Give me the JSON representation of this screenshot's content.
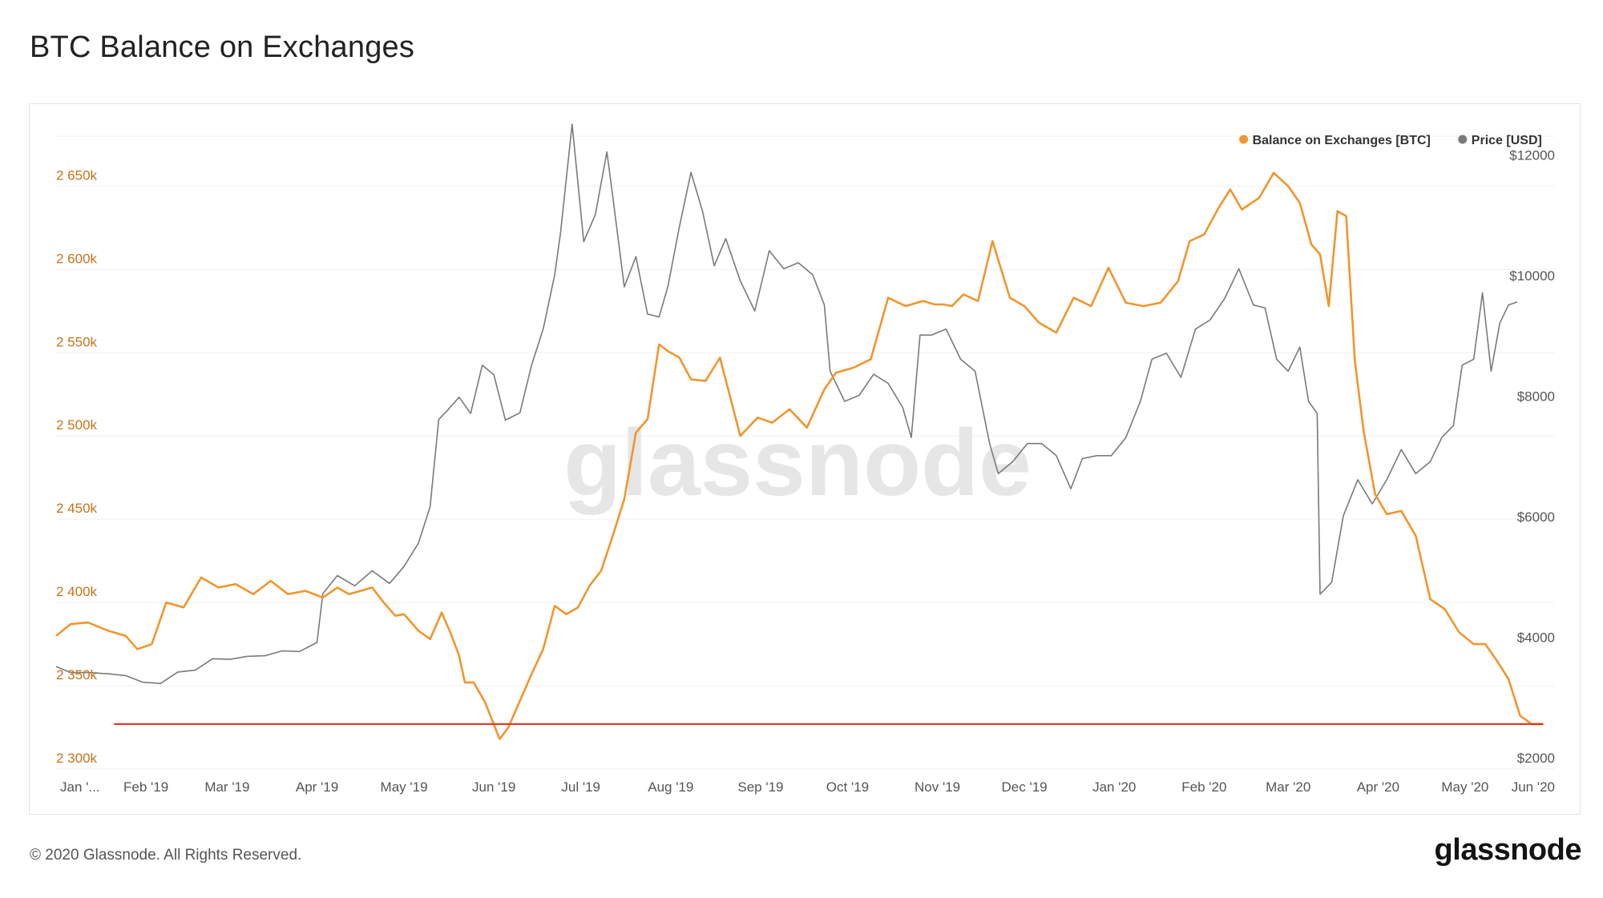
{
  "page": {
    "title": "BTC Balance on Exchanges",
    "copyright": "© 2020 Glassnode. All Rights Reserved.",
    "logo": "glassnode",
    "watermark": "glassnode"
  },
  "colors": {
    "balance": "#f0962e",
    "price": "#7a7a7a",
    "reference_line": "#e8241c",
    "left_axis_text": "#c77418",
    "grid": "#f0f0f0"
  },
  "chart_data": {
    "type": "line",
    "title": "BTC Balance on Exchanges",
    "x_range": [
      "2019-01-01",
      "2020-06-01"
    ],
    "x_ticks": [
      "Jan '...",
      "Feb '19",
      "Mar '19",
      "Apr '19",
      "May '19",
      "Jun '19",
      "Jul '19",
      "Aug '19",
      "Sep '19",
      "Oct '19",
      "Nov '19",
      "Dec '19",
      "Jan '20",
      "Feb '20",
      "Mar '20",
      "Apr '20",
      "May '20",
      "Jun '20"
    ],
    "y_left": {
      "ticks": [
        "2 300k",
        "2 350k",
        "2 400k",
        "2 450k",
        "2 500k",
        "2 550k",
        "2 600k",
        "2 650k"
      ],
      "range": [
        2300000,
        2680000
      ]
    },
    "y_right": {
      "ticks": [
        "$2000",
        "$4000",
        "$6000",
        "$8000",
        "$10000",
        "$12000"
      ],
      "range": [
        2000,
        12500
      ]
    },
    "legend_position": "top-right",
    "grid": true,
    "reference_line": {
      "y": 2327000,
      "axis": "left",
      "from": "2019-01-21",
      "to": "2020-05-28"
    },
    "series": [
      {
        "name": "Balance on Exchanges [BTC]",
        "axis": "left",
        "x": [
          "2019-01-01",
          "2019-01-06",
          "2019-01-12",
          "2019-01-19",
          "2019-01-25",
          "2019-01-29",
          "2019-02-03",
          "2019-02-08",
          "2019-02-14",
          "2019-02-20",
          "2019-02-26",
          "2019-03-04",
          "2019-03-10",
          "2019-03-16",
          "2019-03-22",
          "2019-03-28",
          "2019-04-03",
          "2019-04-08",
          "2019-04-12",
          "2019-04-16",
          "2019-04-20",
          "2019-04-24",
          "2019-04-28",
          "2019-05-01",
          "2019-05-06",
          "2019-05-10",
          "2019-05-14",
          "2019-05-17",
          "2019-05-20",
          "2019-05-22",
          "2019-05-25",
          "2019-05-29",
          "2019-06-03",
          "2019-06-06",
          "2019-06-10",
          "2019-06-14",
          "2019-06-18",
          "2019-06-22",
          "2019-06-26",
          "2019-06-30",
          "2019-07-04",
          "2019-07-08",
          "2019-07-12",
          "2019-07-16",
          "2019-07-20",
          "2019-07-24",
          "2019-07-28",
          "2019-07-31",
          "2019-08-04",
          "2019-08-08",
          "2019-08-13",
          "2019-08-18",
          "2019-08-25",
          "2019-08-31",
          "2019-09-05",
          "2019-09-11",
          "2019-09-17",
          "2019-09-23",
          "2019-09-27",
          "2019-10-03",
          "2019-10-09",
          "2019-10-15",
          "2019-10-21",
          "2019-10-27",
          "2019-10-31",
          "2019-11-03",
          "2019-11-06",
          "2019-11-10",
          "2019-11-15",
          "2019-11-20",
          "2019-11-26",
          "2019-12-01",
          "2019-12-06",
          "2019-12-12",
          "2019-12-18",
          "2019-12-24",
          "2019-12-30",
          "2020-01-05",
          "2020-01-11",
          "2020-01-17",
          "2020-01-23",
          "2020-01-27",
          "2020-02-01",
          "2020-02-06",
          "2020-02-10",
          "2020-02-14",
          "2020-02-20",
          "2020-02-25",
          "2020-03-01",
          "2020-03-05",
          "2020-03-09",
          "2020-03-12",
          "2020-03-15",
          "2020-03-18",
          "2020-03-21",
          "2020-03-24",
          "2020-03-27",
          "2020-03-31",
          "2020-04-04",
          "2020-04-09",
          "2020-04-14",
          "2020-04-19",
          "2020-04-24",
          "2020-04-29",
          "2020-05-04",
          "2020-05-08",
          "2020-05-12",
          "2020-05-16",
          "2020-05-20",
          "2020-05-24",
          "2020-05-28"
        ],
        "values": [
          2380000,
          2387000,
          2388000,
          2383000,
          2380000,
          2372000,
          2375000,
          2400000,
          2397000,
          2415000,
          2409000,
          2411000,
          2405000,
          2413000,
          2405000,
          2407000,
          2403000,
          2409000,
          2405000,
          2407000,
          2409000,
          2400000,
          2392000,
          2393000,
          2383000,
          2378000,
          2394000,
          2382000,
          2368000,
          2352000,
          2352000,
          2340000,
          2318000,
          2325000,
          2341000,
          2357000,
          2372000,
          2398000,
          2393000,
          2397000,
          2410000,
          2419000,
          2440000,
          2462000,
          2502000,
          2510000,
          2555000,
          2551000,
          2547000,
          2534000,
          2533000,
          2547000,
          2500000,
          2511000,
          2508000,
          2516000,
          2505000,
          2528000,
          2538000,
          2541000,
          2546000,
          2583000,
          2578000,
          2581000,
          2579000,
          2579000,
          2578000,
          2585000,
          2581000,
          2617000,
          2583000,
          2578000,
          2568000,
          2562000,
          2583000,
          2578000,
          2601000,
          2580000,
          2578000,
          2580000,
          2593000,
          2617000,
          2621000,
          2637000,
          2648000,
          2636000,
          2643000,
          2658000,
          2650000,
          2640000,
          2615000,
          2609000,
          2578000,
          2635000,
          2632000,
          2545000,
          2503000,
          2465000,
          2453000,
          2455000,
          2440000,
          2402000,
          2396000,
          2382000,
          2375000,
          2375000,
          2365000,
          2354000,
          2332000,
          2327000,
          2327000
        ]
      },
      {
        "name": "Price [USD]",
        "axis": "right",
        "x": [
          "2019-01-01",
          "2019-01-06",
          "2019-01-12",
          "2019-01-19",
          "2019-01-25",
          "2019-01-31",
          "2019-02-06",
          "2019-02-12",
          "2019-02-18",
          "2019-02-24",
          "2019-03-02",
          "2019-03-08",
          "2019-03-14",
          "2019-03-20",
          "2019-03-26",
          "2019-04-01",
          "2019-04-03",
          "2019-04-08",
          "2019-04-14",
          "2019-04-20",
          "2019-04-26",
          "2019-05-01",
          "2019-05-06",
          "2019-05-10",
          "2019-05-13",
          "2019-05-16",
          "2019-05-20",
          "2019-05-24",
          "2019-05-28",
          "2019-06-01",
          "2019-06-05",
          "2019-06-10",
          "2019-06-14",
          "2019-06-18",
          "2019-06-22",
          "2019-06-24",
          "2019-06-26",
          "2019-06-28",
          "2019-07-02",
          "2019-07-06",
          "2019-07-10",
          "2019-07-12",
          "2019-07-16",
          "2019-07-20",
          "2019-07-24",
          "2019-07-28",
          "2019-07-31",
          "2019-08-04",
          "2019-08-08",
          "2019-08-12",
          "2019-08-16",
          "2019-08-20",
          "2019-08-25",
          "2019-08-30",
          "2019-09-04",
          "2019-09-09",
          "2019-09-14",
          "2019-09-19",
          "2019-09-23",
          "2019-09-25",
          "2019-09-30",
          "2019-10-05",
          "2019-10-10",
          "2019-10-15",
          "2019-10-20",
          "2019-10-23",
          "2019-10-26",
          "2019-10-30",
          "2019-11-04",
          "2019-11-09",
          "2019-11-14",
          "2019-11-19",
          "2019-11-22",
          "2019-11-27",
          "2019-12-02",
          "2019-12-07",
          "2019-12-12",
          "2019-12-17",
          "2019-12-21",
          "2019-12-26",
          "2019-12-31",
          "2020-01-05",
          "2020-01-10",
          "2020-01-14",
          "2020-01-19",
          "2020-01-24",
          "2020-01-29",
          "2020-02-03",
          "2020-02-08",
          "2020-02-13",
          "2020-02-18",
          "2020-02-22",
          "2020-02-26",
          "2020-03-01",
          "2020-03-05",
          "2020-03-08",
          "2020-03-11",
          "2020-03-12",
          "2020-03-16",
          "2020-03-20",
          "2020-03-25",
          "2020-03-30",
          "2020-04-04",
          "2020-04-09",
          "2020-04-14",
          "2020-04-19",
          "2020-04-23",
          "2020-04-27",
          "2020-04-30",
          "2020-05-04",
          "2020-05-07",
          "2020-05-10",
          "2020-05-13",
          "2020-05-16",
          "2020-05-19"
        ],
        "values": [
          3700,
          3600,
          3600,
          3580,
          3550,
          3440,
          3420,
          3610,
          3640,
          3830,
          3820,
          3870,
          3880,
          3960,
          3950,
          4100,
          4910,
          5210,
          5040,
          5290,
          5080,
          5360,
          5750,
          6350,
          7800,
          7950,
          8170,
          7900,
          8700,
          8540,
          7790,
          7910,
          8700,
          9300,
          10200,
          10900,
          11800,
          12700,
          10750,
          11200,
          12240,
          11500,
          10000,
          10500,
          9550,
          9500,
          10000,
          11000,
          11900,
          11250,
          10350,
          10800,
          10100,
          9600,
          10600,
          10300,
          10400,
          10200,
          9700,
          8600,
          8100,
          8200,
          8550,
          8400,
          8000,
          7500,
          9200,
          9200,
          9300,
          8800,
          8600,
          7400,
          6900,
          7100,
          7400,
          7400,
          7200,
          6650,
          7150,
          7200,
          7200,
          7500,
          8100,
          8800,
          8900,
          8500,
          9300,
          9450,
          9800,
          10300,
          9700,
          9650,
          8800,
          8600,
          9000,
          8100,
          7900,
          4900,
          5100,
          6200,
          6800,
          6400,
          6800,
          7300,
          6900,
          7100,
          7500,
          7700,
          8700,
          8800,
          9900,
          8600,
          9400,
          9700,
          9750
        ]
      }
    ]
  }
}
